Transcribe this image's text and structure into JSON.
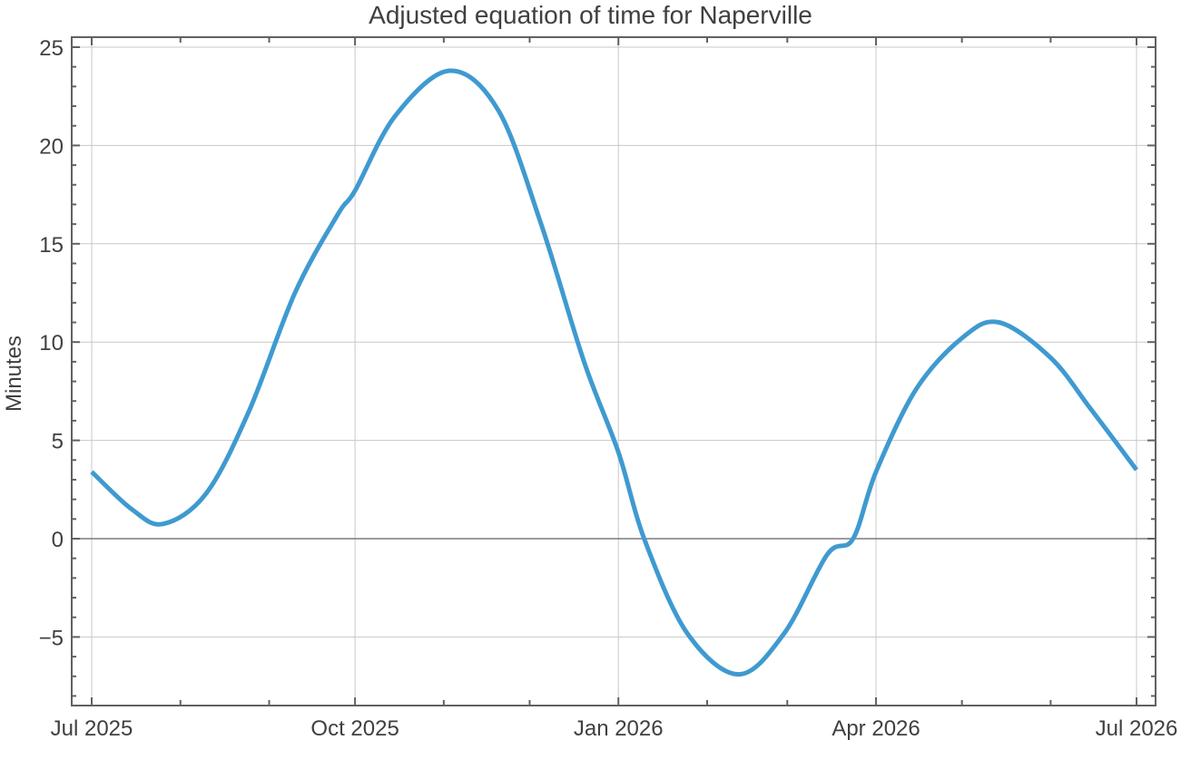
{
  "chart_data": {
    "type": "line",
    "title": "Adjusted equation of time for Naperville",
    "xlabel": "",
    "ylabel": "Minutes",
    "ylim": [
      -8.5,
      25.5
    ],
    "xlim": [
      "2025-06-27",
      "2026-07-08"
    ],
    "grid": true,
    "legend": null,
    "line_color": "#3f9ad0",
    "x_ticks": [
      "Jul 2025",
      "Oct 2025",
      "Jan 2026",
      "Apr 2026",
      "Jul 2026"
    ],
    "y_ticks": [
      -5,
      0,
      5,
      10,
      15,
      20,
      25
    ],
    "series": [
      {
        "name": "Adjusted equation of time",
        "x": [
          "2025-07-01",
          "2025-07-15",
          "2025-07-26",
          "2025-08-10",
          "2025-08-25",
          "2025-09-10",
          "2025-09-25",
          "2025-10-01",
          "2025-10-15",
          "2025-11-03",
          "2025-11-20",
          "2025-12-05",
          "2025-12-20",
          "2026-01-01",
          "2026-01-10",
          "2026-01-25",
          "2026-02-12",
          "2026-02-28",
          "2026-03-15",
          "2026-03-24",
          "2026-04-01",
          "2026-04-15",
          "2026-05-01",
          "2026-05-14",
          "2026-06-01",
          "2026-06-15",
          "2026-07-01"
        ],
        "values": [
          3.4,
          1.5,
          0.75,
          2.3,
          6.5,
          12.5,
          16.5,
          17.7,
          21.5,
          23.8,
          21.8,
          16.0,
          9.0,
          4.4,
          0.0,
          -4.8,
          -6.9,
          -4.8,
          -0.8,
          0.0,
          3.4,
          7.6,
          10.2,
          11.0,
          9.2,
          6.6,
          3.5
        ]
      }
    ]
  }
}
